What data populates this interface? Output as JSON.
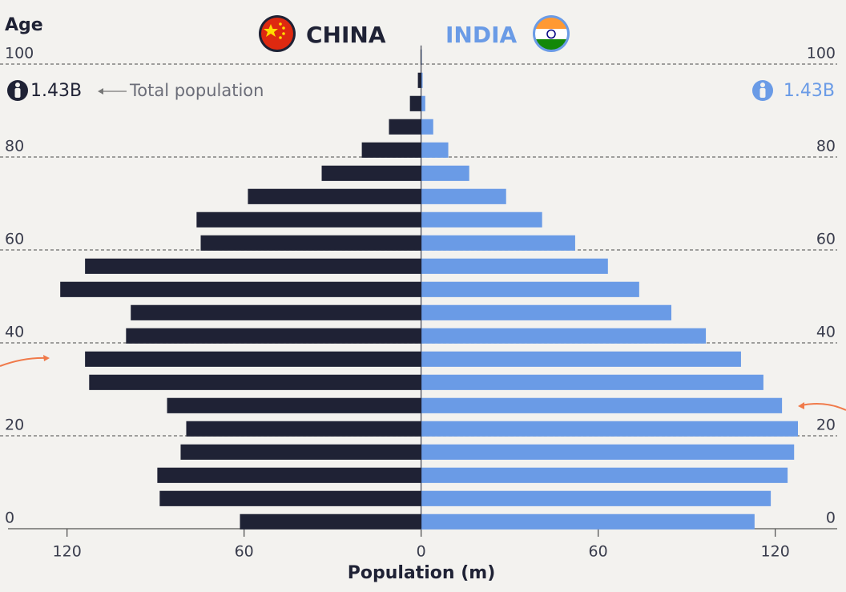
{
  "chart_data": {
    "type": "pyramid",
    "y_axis_label": "Age",
    "x_axis_label": "Population (m)",
    "annotation": "Total population",
    "ages": [
      0,
      5,
      10,
      15,
      20,
      25,
      30,
      35,
      40,
      45,
      50,
      55,
      60,
      65,
      70,
      75,
      80,
      85,
      90,
      95,
      100
    ],
    "series": [
      {
        "name": "CHINA",
        "color": "#1f2235",
        "side": "left",
        "total": "1.43B",
        "values": [
          61.4,
          88.6,
          89.4,
          81.5,
          79.6,
          86.1,
          112.5,
          113.9,
          100,
          98.4,
          122.3,
          113.9,
          74.7,
          76.1,
          58.7,
          33.7,
          20.1,
          10.9,
          3.8,
          1.1,
          0.2
        ]
      },
      {
        "name": "INDIA",
        "color": "#6a9be6",
        "side": "right",
        "total": "1.43B",
        "values": [
          113,
          118.5,
          124.2,
          126.4,
          127.7,
          122.3,
          116,
          108.4,
          96.5,
          84.8,
          73.9,
          63.3,
          52.2,
          41,
          28.8,
          16.3,
          9.2,
          4.1,
          1.4,
          0.5,
          0.2
        ]
      }
    ],
    "ylim": [
      0,
      104
    ],
    "yticks": [
      0,
      20,
      40,
      60,
      80,
      100
    ],
    "xlim": [
      -140,
      141
    ],
    "xticks": [
      {
        "value": -120,
        "label": "120"
      },
      {
        "value": -60,
        "label": "60"
      },
      0,
      60,
      120
    ],
    "grid": true
  }
}
